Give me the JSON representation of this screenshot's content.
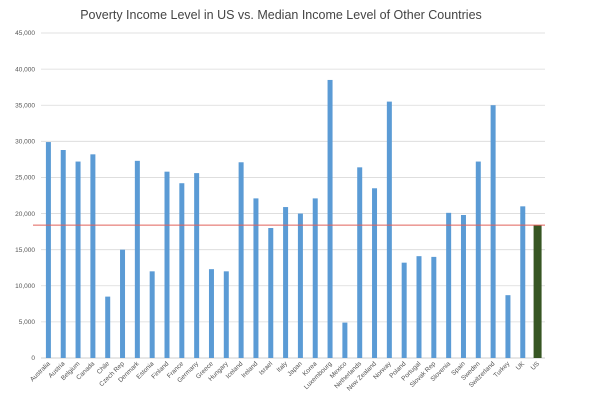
{
  "chart_data": {
    "type": "bar",
    "title": "Poverty Income Level in US vs. Median Income Level of Other Countries",
    "xlabel": "",
    "ylabel": "",
    "ylim": [
      0,
      45000
    ],
    "yticks": [
      0,
      5000,
      10000,
      15000,
      20000,
      25000,
      30000,
      35000,
      40000,
      45000
    ],
    "ytick_labels": [
      "0",
      "5,000",
      "10,000",
      "15,000",
      "20,000",
      "25,000",
      "30,000",
      "35,000",
      "40,000",
      "45,000"
    ],
    "grid": true,
    "legend": "none",
    "categories": [
      "Australia",
      "Austria",
      "Belgium",
      "Canada",
      "Chile",
      "Czech Rep",
      "Denmark",
      "Estonia",
      "Finland",
      "France",
      "Germany",
      "Greece",
      "Hungary",
      "Iceland",
      "Ireland",
      "Israel",
      "Italy",
      "Japan",
      "Korea",
      "Luxembourg",
      "Mexico",
      "Netherlands",
      "New Zealand",
      "Norway",
      "Poland",
      "Portugal",
      "Slovak Rep",
      "Slovenia",
      "Spain",
      "Sweden",
      "Switzerland",
      "Turkey",
      "UK",
      "US"
    ],
    "values": [
      29900,
      28800,
      27200,
      28200,
      8500,
      15000,
      27300,
      12000,
      25800,
      24200,
      25600,
      12300,
      12000,
      27100,
      22100,
      18000,
      20900,
      20000,
      22100,
      38500,
      4900,
      26400,
      23500,
      35500,
      13200,
      14100,
      14000,
      20100,
      19800,
      27200,
      35000,
      8700,
      21000,
      18400
    ],
    "reference_line": 18400,
    "colors": {
      "bar": "#5b9bd5",
      "highlight_bar": "#375623",
      "reference_line": "#e0605a"
    },
    "highlight_category": "US"
  }
}
